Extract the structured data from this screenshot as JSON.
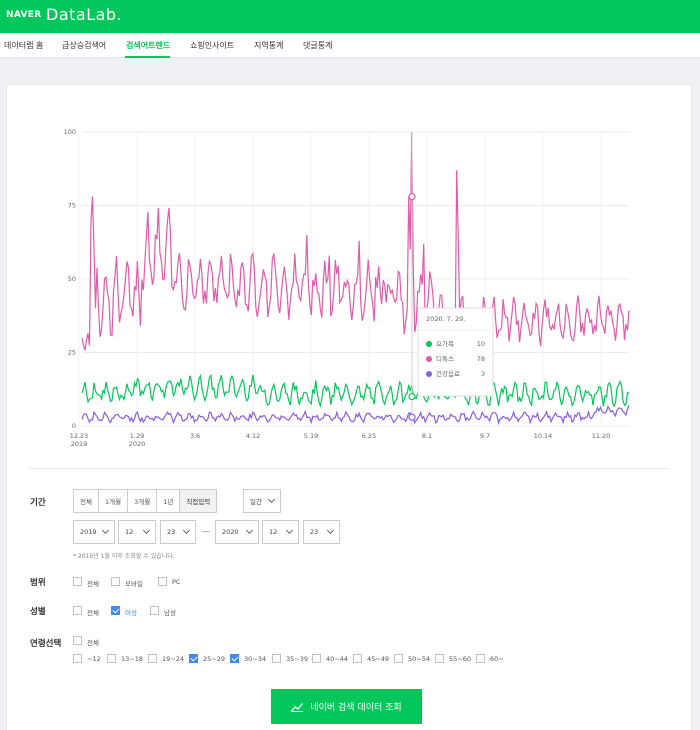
{
  "header": {
    "brand": "NAVER",
    "product": "DataLab."
  },
  "nav": {
    "items": [
      {
        "label": "데이터랩 홈",
        "active": false
      },
      {
        "label": "급상승검색어",
        "active": false
      },
      {
        "label": "검색어트렌드",
        "active": true
      },
      {
        "label": "쇼핑인사이트",
        "active": false
      },
      {
        "label": "지역통계",
        "active": false
      },
      {
        "label": "댓글통계",
        "active": false
      }
    ]
  },
  "chart_data": {
    "type": "line",
    "ylim": [
      0,
      100
    ],
    "yticks": [
      "0",
      "25",
      "50",
      "75",
      "100"
    ],
    "xticks": [
      {
        "label": "12.23",
        "sub": "2019"
      },
      {
        "label": "1.29",
        "sub": "2020"
      },
      {
        "label": "3.6",
        "sub": ""
      },
      {
        "label": "4.12",
        "sub": ""
      },
      {
        "label": "5.19",
        "sub": ""
      },
      {
        "label": "6.25",
        "sub": ""
      },
      {
        "label": "8.1",
        "sub": ""
      },
      {
        "label": "9.7",
        "sub": ""
      },
      {
        "label": "10.14",
        "sub": ""
      },
      {
        "label": "11.20",
        "sub": ""
      }
    ],
    "series": [
      {
        "name": "요가복",
        "color": "#03c75a"
      },
      {
        "name": "디톡스",
        "color": "#e05ba8"
      },
      {
        "name": "건강음료",
        "color": "#8a5de0"
      }
    ],
    "tooltip": {
      "date": "2020. 7. 29.",
      "rows": [
        {
          "name": "요가복",
          "value": "10"
        },
        {
          "name": "디톡스",
          "value": "78"
        },
        {
          "name": "건강음료",
          "value": "3"
        }
      ]
    }
  },
  "filters": {
    "period": {
      "label": "기간",
      "buttons": [
        "전체",
        "1개월",
        "3개월",
        "1년",
        "직접입력"
      ],
      "unit": "일간",
      "start": {
        "year": "2019",
        "month": "12",
        "day": "23"
      },
      "end": {
        "year": "2020",
        "month": "12",
        "day": "23"
      },
      "note": "* 2016년 1월 이후 조회할 수 있습니다."
    },
    "scope": {
      "label": "범위",
      "options": [
        "전체",
        "모바일",
        "PC"
      ]
    },
    "gender": {
      "label": "성별",
      "options": [
        "전체",
        "여성",
        "남성"
      ],
      "selected": "여성"
    },
    "age": {
      "label": "연령선택",
      "all_label": "전체",
      "options": [
        "~12",
        "13~18",
        "19~24",
        "25~29",
        "30~34",
        "35~39",
        "40~44",
        "45~49",
        "50~54",
        "55~60",
        "60~"
      ],
      "selected": [
        "25~29",
        "30~34"
      ]
    }
  },
  "submit": {
    "label": "네이버 검색 데이터 조회"
  }
}
